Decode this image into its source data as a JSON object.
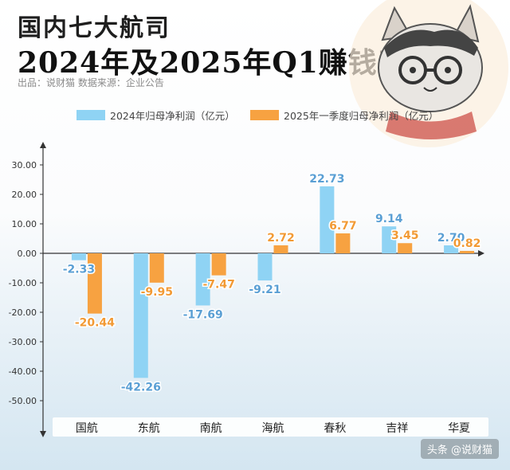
{
  "header": {
    "title_line1": "国内七大航司",
    "title_line2": "2024年及2025年Q1赚钱表现",
    "source": "出品：说财猫  数据来源：企业公告"
  },
  "watermark": "头条 @说财猫",
  "colors": {
    "series_2024": "#8fd3f4",
    "series_2025q1": "#f7a241",
    "label_2024": "#5a9fd4",
    "label_2025q1": "#f29a34"
  },
  "chart_data": {
    "type": "bar",
    "categories": [
      "国航",
      "东航",
      "南航",
      "海航",
      "春秋",
      "吉祥",
      "华夏"
    ],
    "series": [
      {
        "name": "2024年归母净利润（亿元）",
        "values": [
          -2.33,
          -42.26,
          -17.69,
          -9.21,
          22.73,
          9.14,
          2.7
        ]
      },
      {
        "name": "2025年一季度归母净利润（亿元）",
        "values": [
          -20.44,
          -9.95,
          -7.47,
          2.72,
          6.77,
          3.45,
          0.82
        ]
      }
    ],
    "value_labels": [
      [
        "-2.33",
        "-42.26",
        "-17.69",
        "-9.21",
        "22.73",
        "9.14",
        "2.70"
      ],
      [
        "-20.44",
        "-9.95",
        "-7.47",
        "2.72",
        "6.77",
        "3.45",
        "0.82"
      ]
    ],
    "yticks": [
      "30.00",
      "20.00",
      "10.00",
      "0.00",
      "-10.00",
      "-20.00",
      "-30.00",
      "-40.00",
      "-50.00"
    ],
    "ylim": [
      -55,
      35
    ],
    "legend_position": "top",
    "grid": false
  }
}
